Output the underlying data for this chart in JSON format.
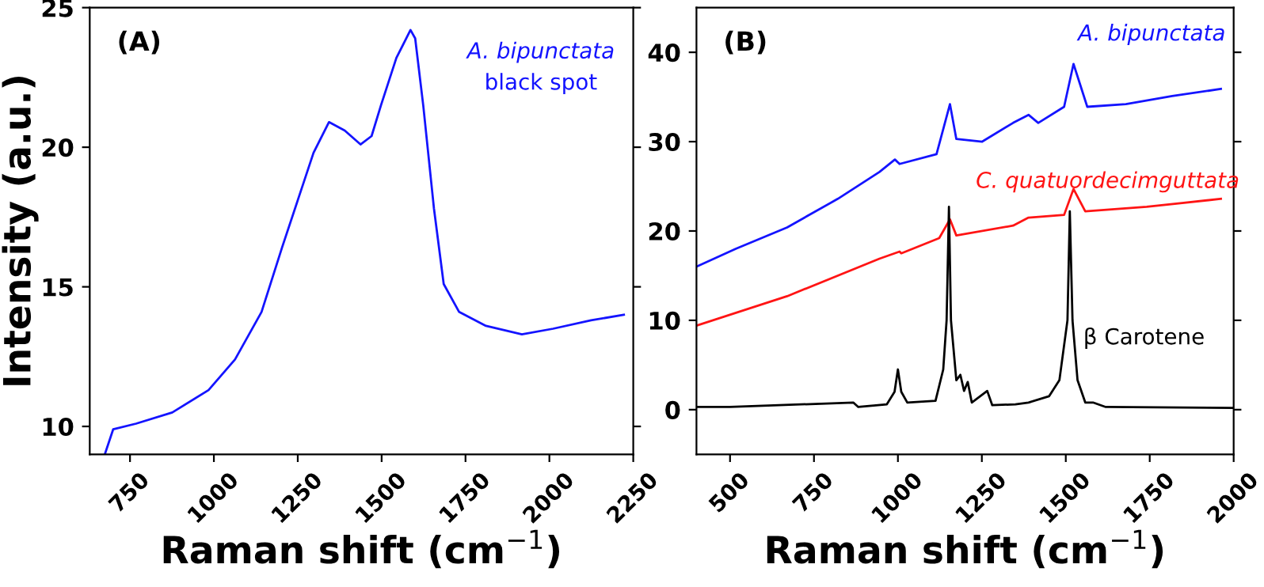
{
  "chart_data": [
    {
      "type": "line",
      "title": "(A)",
      "ylabel": "Intensity (a.u.)",
      "xlabel": "Raman shift (cm$^{−1}$)",
      "xlim": [
        630,
        2250
      ],
      "xticks": [
        750,
        1000,
        1250,
        1500,
        1750,
        2000,
        2250
      ],
      "ylim": [
        9,
        25
      ],
      "yticks": [
        10,
        15,
        20,
        25
      ],
      "annotations": [
        "black spot"
      ],
      "grid": false,
      "legend": false,
      "marker": "none",
      "line_style": "solid",
      "series": [
        {
          "name": "A. bipunctata",
          "color": "#1414ff",
          "x": [
            675,
            700,
            768,
            876,
            984,
            1063,
            1142,
            1203,
            1250,
            1297,
            1343,
            1390,
            1437,
            1470,
            1498,
            1544,
            1586,
            1600,
            1624,
            1656,
            1685,
            1731,
            1811,
            1918,
            2011,
            2124,
            2222
          ],
          "values": [
            9.0,
            9.9,
            10.1,
            10.5,
            11.3,
            12.4,
            14.1,
            16.4,
            18.1,
            19.8,
            20.9,
            20.6,
            20.1,
            20.4,
            21.5,
            23.2,
            24.2,
            23.9,
            21.5,
            17.8,
            15.1,
            14.1,
            13.6,
            13.3,
            13.5,
            13.8,
            14.0
          ]
        }
      ]
    },
    {
      "type": "line",
      "title": "(B)",
      "xlabel": "Raman shift (cm$^{−1}$)",
      "xlim": [
        400,
        2000
      ],
      "xticks": [
        500,
        750,
        1000,
        1250,
        1500,
        1750,
        2000
      ],
      "ylim": [
        -5,
        45
      ],
      "yticks": [
        0,
        10,
        20,
        30,
        40
      ],
      "grid": false,
      "legend": false,
      "marker": "none",
      "line_style": "solid",
      "series": [
        {
          "name": "A. bipunctata",
          "color": "#1414ff",
          "x": [
            400,
            517,
            670,
            821,
            945,
            991,
            1005,
            1115,
            1155,
            1174,
            1251,
            1343,
            1389,
            1418,
            1495,
            1523,
            1564,
            1679,
            1817,
            1962
          ],
          "values": [
            16.0,
            18.0,
            20.4,
            23.6,
            26.6,
            28.0,
            27.5,
            28.6,
            34.2,
            30.3,
            30.0,
            32.1,
            33.0,
            32.1,
            33.9,
            38.7,
            33.9,
            34.2,
            35.1,
            35.9
          ]
        },
        {
          "name": "C. quatuordecimguttata",
          "color": "#ff1414",
          "x": [
            400,
            670,
            945,
            1005,
            1010,
            1123,
            1155,
            1174,
            1343,
            1389,
            1495,
            1523,
            1558,
            1741,
            1962
          ],
          "values": [
            9.4,
            12.7,
            16.9,
            17.7,
            17.5,
            19.2,
            21.3,
            19.5,
            20.6,
            21.5,
            21.8,
            24.7,
            22.2,
            22.7,
            23.6
          ]
        },
        {
          "name": "β Carotene",
          "color": "#000000",
          "x": [
            400,
            500,
            867,
            882,
            967,
            990,
            1000,
            1010,
            1028,
            1112,
            1135,
            1145,
            1152,
            1158,
            1174,
            1186,
            1197,
            1208,
            1220,
            1266,
            1281,
            1350,
            1389,
            1450,
            1481,
            1505,
            1512,
            1520,
            1535,
            1558,
            1581,
            1619,
            2000
          ],
          "values": [
            0.3,
            0.3,
            0.8,
            0.3,
            0.6,
            2.0,
            4.5,
            2.0,
            0.8,
            1.0,
            4.5,
            10,
            22.7,
            10,
            3.3,
            3.9,
            2.1,
            3.1,
            0.8,
            2.1,
            0.5,
            0.6,
            0.8,
            1.5,
            3.3,
            10,
            22.2,
            10,
            3.3,
            0.8,
            0.8,
            0.3,
            0.2
          ]
        }
      ]
    }
  ]
}
